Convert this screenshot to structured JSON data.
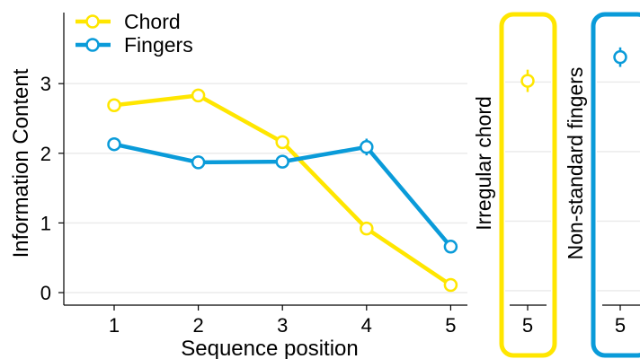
{
  "chart_data": {
    "type": "line",
    "ylabel": "Information Content",
    "xlabel": "Sequence position",
    "x": [
      1,
      2,
      3,
      4,
      5
    ],
    "xticks": [
      "1",
      "2",
      "3",
      "4",
      "5"
    ],
    "yticks": [
      "0",
      "1",
      "2",
      "3"
    ],
    "ylim": [
      -0.18,
      4.02
    ],
    "grid": "horizontal",
    "legend_placement": "top-left",
    "series": [
      {
        "name": "Chord",
        "color": "#FFE600",
        "values": [
          2.69,
          2.83,
          2.16,
          0.92,
          0.11
        ],
        "errors": [
          0.02,
          0.03,
          0.06,
          0.05,
          0.03
        ]
      },
      {
        "name": "Fingers",
        "color": "#0A9BD9",
        "values": [
          2.13,
          1.87,
          1.88,
          2.09,
          0.66
        ],
        "errors": [
          0.02,
          0.02,
          0.03,
          0.12,
          0.03
        ]
      }
    ],
    "panels": [
      {
        "label": "Irregular chord",
        "color": "#FFE600",
        "x_tick": "5",
        "value": 3.04,
        "error": 0.16
      },
      {
        "label": "Non-standard fingers",
        "color": "#0A9BD9",
        "x_tick": "5",
        "value": 3.38,
        "error": 0.14
      }
    ]
  }
}
